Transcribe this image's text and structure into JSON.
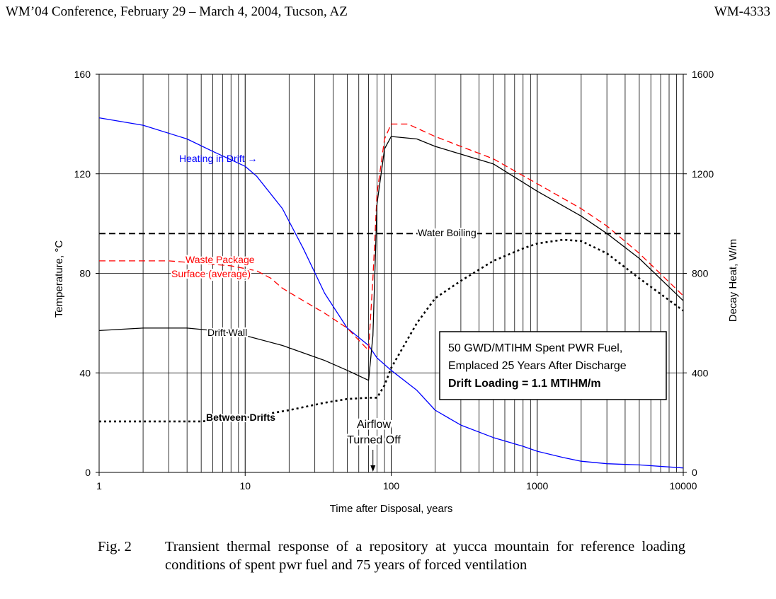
{
  "header": {
    "left": "WM’04 Conference, February 29 – March 4, 2004, Tucson, AZ",
    "right": "WM-4333"
  },
  "caption": {
    "label": "Fig. 2",
    "text": "Transient thermal response of a repository at yucca mountain for reference loading conditions of spent pwr fuel and 75 years of forced ventilation"
  },
  "chart_data": {
    "type": "line",
    "xlabel": "Time after Disposal, years",
    "ylabel": "Temperature, °C",
    "y2label": "Decay Heat, W/m",
    "xscale": "log",
    "xlim": [
      1,
      10000
    ],
    "ylim": [
      0,
      160
    ],
    "y2lim": [
      0,
      1600
    ],
    "x_ticks": [
      "1",
      "10",
      "100",
      "1000",
      "10000"
    ],
    "y_ticks": [
      "0",
      "40",
      "80",
      "120",
      "160"
    ],
    "y2_ticks": [
      "0",
      "400",
      "800",
      "1200",
      "1600"
    ],
    "grid": {
      "vertical_minor": true,
      "horizontal": true
    },
    "series": [
      {
        "name": "Heating in Drift",
        "axis": "y2",
        "color": "#0000ff",
        "dash": "solid",
        "points": [
          [
            1,
            1425
          ],
          [
            2,
            1395
          ],
          [
            4,
            1340
          ],
          [
            6,
            1290
          ],
          [
            10,
            1230
          ],
          [
            12,
            1190
          ],
          [
            18,
            1060
          ],
          [
            25,
            900
          ],
          [
            35,
            720
          ],
          [
            50,
            580
          ],
          [
            70,
            510
          ],
          [
            80,
            460
          ],
          [
            100,
            410
          ],
          [
            150,
            330
          ],
          [
            200,
            250
          ],
          [
            300,
            190
          ],
          [
            500,
            140
          ],
          [
            800,
            105
          ],
          [
            1000,
            85
          ],
          [
            1500,
            60
          ],
          [
            2000,
            45
          ],
          [
            3000,
            35
          ],
          [
            5000,
            30
          ],
          [
            10000,
            18
          ]
        ]
      },
      {
        "name": "Waste Package Surface (average)",
        "axis": "y",
        "color": "#ff0000",
        "dash": "dashed",
        "points": [
          [
            1,
            85
          ],
          [
            2,
            85
          ],
          [
            3,
            85
          ],
          [
            5,
            84
          ],
          [
            8,
            83
          ],
          [
            12,
            81
          ],
          [
            15,
            78
          ],
          [
            18,
            74
          ],
          [
            25,
            69
          ],
          [
            35,
            64
          ],
          [
            50,
            58
          ],
          [
            70,
            49
          ],
          [
            75,
            78
          ],
          [
            80,
            112
          ],
          [
            90,
            134
          ],
          [
            100,
            140
          ],
          [
            130,
            140
          ],
          [
            200,
            135
          ],
          [
            300,
            131
          ],
          [
            500,
            126
          ],
          [
            1000,
            116
          ],
          [
            2000,
            106
          ],
          [
            3000,
            99
          ],
          [
            5000,
            88
          ],
          [
            10000,
            71
          ]
        ]
      },
      {
        "name": "Drift Wall",
        "axis": "y",
        "color": "#000000",
        "dash": "solid",
        "points": [
          [
            1,
            57
          ],
          [
            2,
            58
          ],
          [
            4,
            58
          ],
          [
            6,
            57
          ],
          [
            10,
            55
          ],
          [
            18,
            51
          ],
          [
            35,
            45
          ],
          [
            50,
            41
          ],
          [
            70,
            37
          ],
          [
            75,
            55
          ],
          [
            80,
            108
          ],
          [
            90,
            130
          ],
          [
            100,
            135
          ],
          [
            150,
            134
          ],
          [
            200,
            131
          ],
          [
            500,
            124
          ],
          [
            1000,
            113
          ],
          [
            2000,
            103
          ],
          [
            3000,
            96
          ],
          [
            5000,
            86
          ],
          [
            10000,
            69
          ]
        ]
      },
      {
        "name": "Between Drifts",
        "axis": "y",
        "color": "#000000",
        "dash": "dotted",
        "points": [
          [
            1,
            20.5
          ],
          [
            5,
            20.5
          ],
          [
            10,
            22
          ],
          [
            20,
            25
          ],
          [
            35,
            28
          ],
          [
            50,
            29.5
          ],
          [
            70,
            30
          ],
          [
            80,
            30
          ],
          [
            90,
            35
          ],
          [
            100,
            42
          ],
          [
            150,
            60
          ],
          [
            200,
            70
          ],
          [
            300,
            77
          ],
          [
            500,
            85
          ],
          [
            800,
            90
          ],
          [
            1000,
            92
          ],
          [
            1500,
            93.5
          ],
          [
            2000,
            93
          ],
          [
            3000,
            88
          ],
          [
            5000,
            78
          ],
          [
            10000,
            65
          ]
        ]
      },
      {
        "name": "Water Boiling",
        "axis": "y",
        "color": "#000000",
        "dash": "dashed",
        "points": [
          [
            1,
            96
          ],
          [
            10000,
            96
          ]
        ]
      }
    ],
    "annotations": {
      "heating": "Heating in Drift →",
      "waste_line1": "Waste Package",
      "waste_line2": "Surface (average)",
      "drift_wall": "Drift Wall",
      "between": "Between Drifts",
      "boiling": "Water Boiling",
      "airflow_line1": "Airflow",
      "airflow_line2": "Turned Off"
    },
    "airflow_off_year": 75,
    "infobox": {
      "line1": "50 GWD/MTIHM Spent PWR Fuel,",
      "line2": "Emplaced 25 Years After Discharge",
      "line3": "Drift Loading = 1.1 MTIHM/m"
    }
  }
}
